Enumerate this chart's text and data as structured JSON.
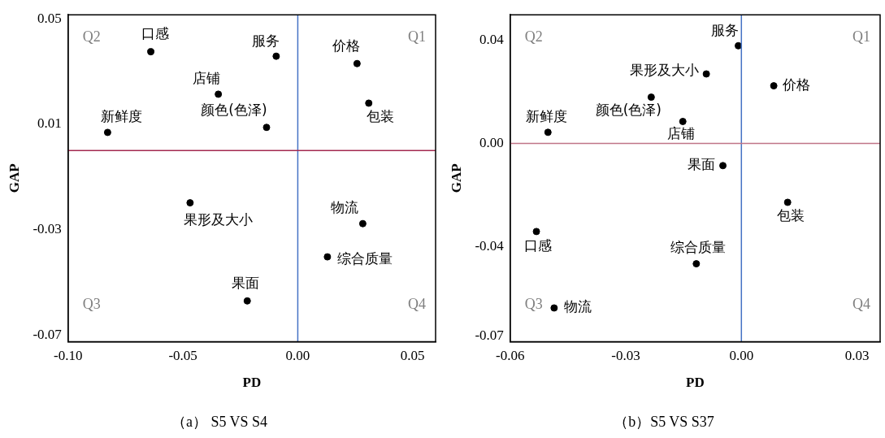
{
  "chart_data": [
    {
      "type": "scatter",
      "title": "（a） S5 VS S4",
      "xlabel": "PD",
      "ylabel": "GAP",
      "marker": "circle",
      "grid": false,
      "legend": false,
      "xlim": [
        -0.1,
        0.06
      ],
      "xticks": [
        {
          "value": -0.1,
          "label": "-0.10"
        },
        -0.05,
        {
          "value": 0,
          "label": "0.00"
        },
        0.05
      ],
      "ylim": [
        -0.0725,
        0.0515
      ],
      "yticks": [
        0.05,
        0.01,
        -0.03,
        -0.07
      ],
      "series": [
        {
          "color": "#000000",
          "x": [
            -0.064,
            -0.0094,
            0.0258,
            -0.0346,
            0.0309,
            -0.0136,
            -0.0828,
            -0.0469,
            0.0283,
            0.0129,
            -0.022
          ],
          "values": [
            0.0375,
            0.0358,
            0.033,
            0.0214,
            0.018,
            0.0088,
            0.0069,
            -0.0198,
            -0.0277,
            -0.0403,
            -0.057
          ]
        }
      ],
      "ref_lines": [
        {
          "axis": "x",
          "value": 0,
          "color": "#4472c4"
        },
        {
          "axis": "y",
          "value": 0,
          "color": "#a3294f"
        }
      ],
      "annotations": [
        "Q1",
        "Q2",
        "Q3",
        "Q4",
        {
          "text": "口感",
          "x": -0.064,
          "y": 0.0375
        },
        {
          "text": "服务",
          "x": -0.0094,
          "y": 0.0358
        },
        {
          "text": "价格",
          "x": 0.0258,
          "y": 0.033
        },
        {
          "text": "店铺",
          "x": -0.0346,
          "y": 0.0214
        },
        {
          "text": "包装",
          "x": 0.0309,
          "y": 0.018
        },
        {
          "text": "颜色(色泽)",
          "x": -0.0136,
          "y": 0.0088
        },
        {
          "text": "新鲜度",
          "x": -0.0828,
          "y": 0.0069
        },
        {
          "text": "果形及大小",
          "x": -0.0469,
          "y": -0.0198
        },
        {
          "text": "物流",
          "x": 0.0283,
          "y": -0.0277
        },
        {
          "text": "综合质量",
          "x": 0.0129,
          "y": -0.0403
        },
        {
          "text": "果面",
          "x": -0.022,
          "y": -0.057
        }
      ]
    },
    {
      "type": "scatter",
      "title": "（b）S5 VS S37",
      "xlabel": "PD",
      "ylabel": "GAP",
      "marker": "circle",
      "grid": false,
      "legend": false,
      "xlim": [
        -0.06,
        0.036
      ],
      "xticks": [
        {
          "value": -0.06,
          "label": "-0.06"
        },
        {
          "value": -0.03,
          "label": "-0.03"
        },
        {
          "value": 0,
          "label": "0.00"
        },
        {
          "value": 0.03,
          "label": "0.03"
        }
      ],
      "ylim": [
        -0.0768,
        0.0498
      ],
      "yticks": [
        0.04,
        {
          "value": 0,
          "label": "0.00"
        },
        -0.04,
        {
          "value": -0.0747,
          "label": "-0.07"
        }
      ],
      "series": [
        {
          "color": "#000000",
          "x": [
            -0.0008,
            -0.0091,
            0.0084,
            -0.0234,
            -0.0152,
            -0.0502,
            -0.0048,
            0.012,
            -0.0532,
            -0.0117,
            -0.0486
          ],
          "values": [
            0.0378,
            0.0269,
            0.0223,
            0.0179,
            0.0085,
            0.0043,
            -0.0086,
            -0.0228,
            -0.0341,
            -0.0466,
            -0.0637
          ]
        }
      ],
      "ref_lines": [
        {
          "axis": "x",
          "value": 0,
          "color": "#4472c4"
        },
        {
          "axis": "y",
          "value": 0,
          "color": "#c07588"
        }
      ],
      "annotations": [
        "Q1",
        "Q2",
        "Q3",
        "Q4",
        {
          "text": "服务",
          "x": -0.0008,
          "y": 0.0378
        },
        {
          "text": "果形及大小",
          "x": -0.0091,
          "y": 0.0269
        },
        {
          "text": "价格",
          "x": 0.0084,
          "y": 0.0223
        },
        {
          "text": "颜色(色泽)",
          "x": -0.0234,
          "y": 0.0179
        },
        {
          "text": "店铺",
          "x": -0.0152,
          "y": 0.0085
        },
        {
          "text": "新鲜度",
          "x": -0.0502,
          "y": 0.0043
        },
        {
          "text": "果面",
          "x": -0.0048,
          "y": -0.0086
        },
        {
          "text": "包装",
          "x": 0.012,
          "y": -0.0228
        },
        {
          "text": "口感",
          "x": -0.0532,
          "y": -0.0341
        },
        {
          "text": "综合质量",
          "x": -0.0117,
          "y": -0.0466
        },
        {
          "text": "物流",
          "x": -0.0486,
          "y": -0.0637
        }
      ]
    }
  ]
}
